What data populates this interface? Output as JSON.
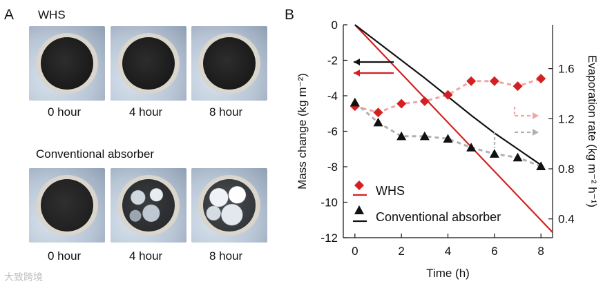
{
  "panel_a": {
    "letter": "A",
    "top_label": "WHS",
    "bottom_label": "Conventional absorber",
    "captions_top": [
      "0 hour",
      "4 hour",
      "8 hour"
    ],
    "captions_bottom": [
      "0 hour",
      "4 hour",
      "8 hour"
    ]
  },
  "panel_b": {
    "letter": "B"
  },
  "watermark": "大致跨境",
  "colors": {
    "whs": "#d42020",
    "conventional": "#111111",
    "whs_trend": "#f2a3a3",
    "conv_trend": "#b0b0b0"
  },
  "chart_data": {
    "type": "line",
    "xlabel": "Time (h)",
    "ylabel_left": "Mass change (kg m⁻²)",
    "ylabel_right": "Evaporation rate (kg m⁻² h⁻¹)",
    "xlim": [
      -0.5,
      8.5
    ],
    "ylim_left": [
      -12,
      0
    ],
    "ylim_right": [
      0.25,
      1.95
    ],
    "x_ticks": [
      "0",
      "2",
      "4",
      "6",
      "8"
    ],
    "y_ticks_left": [
      "0",
      "-2",
      "-4",
      "-6",
      "-8",
      "-10",
      "-12"
    ],
    "y_ticks_right": [
      "0.4",
      "0.8",
      "1.2",
      "1.6"
    ],
    "legend": [
      "WHS",
      "Conventional absorber"
    ],
    "legend_position": "bottom-left",
    "mass_change": {
      "WHS": {
        "x": [
          0,
          8.5
        ],
        "y": [
          0,
          -11.7
        ]
      },
      "Conventional absorber": {
        "x": [
          0,
          1,
          2,
          3,
          4,
          5,
          6,
          7,
          8
        ],
        "y": [
          0,
          -1.0,
          -2.0,
          -3.0,
          -4.05,
          -5.1,
          -6.1,
          -7.0,
          -7.9
        ]
      }
    },
    "evaporation_rate": {
      "WHS": {
        "x": [
          0,
          1,
          2,
          3,
          4,
          5,
          6,
          7,
          8
        ],
        "y": [
          1.3,
          1.25,
          1.32,
          1.34,
          1.39,
          1.5,
          1.5,
          1.46,
          1.52
        ]
      },
      "Conventional absorber": {
        "x": [
          0,
          1,
          2,
          3,
          4,
          5,
          6,
          7,
          8
        ],
        "y": [
          1.33,
          1.17,
          1.06,
          1.06,
          1.04,
          0.97,
          0.92,
          0.89,
          0.82
        ]
      }
    }
  }
}
